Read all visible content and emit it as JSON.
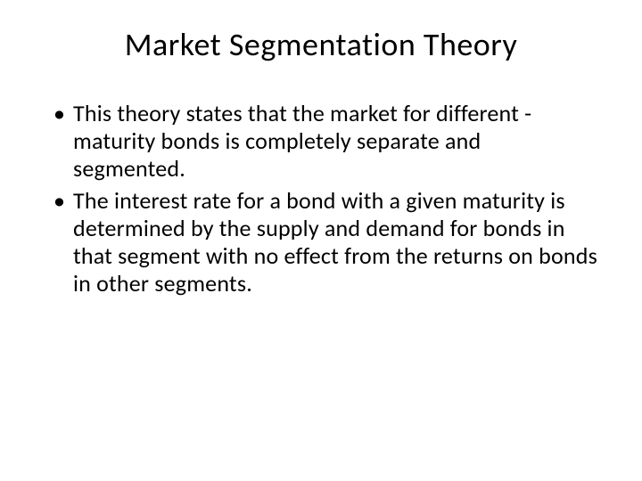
{
  "slide": {
    "title": "Market Segmentation Theory",
    "bullets": [
      "This theory states that the market for different -maturity bonds is completely separate and segmented.",
      "The interest rate for a bond with a given maturity is determined by the supply and demand for bonds in that segment with no effect from the returns on bonds in other segments."
    ],
    "background_color": "#ffffff",
    "text_color": "#000000",
    "title_fontsize": 36,
    "body_fontsize": 26,
    "font_family": "Calibri"
  }
}
